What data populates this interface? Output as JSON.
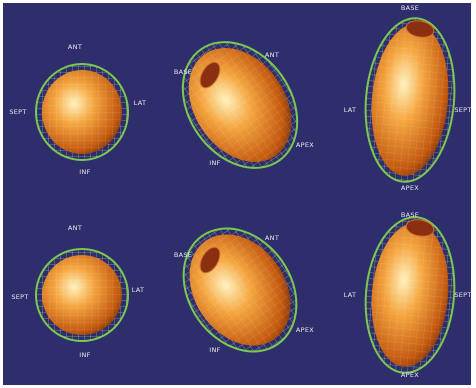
{
  "panels": [
    {
      "labels": [
        "ANT",
        "SEPT",
        "LAT",
        "INF"
      ]
    },
    {
      "labels": [
        "BASE",
        "ANT",
        "INF",
        "APEX"
      ]
    },
    {
      "labels": [
        "BASE",
        "LAT",
        "SEPT",
        "APEX"
      ]
    },
    {
      "labels": [
        "ANT",
        "SEPT",
        "LAT",
        "INF"
      ]
    },
    {
      "labels": [
        "BASE",
        "ANT",
        "INF",
        "APEX"
      ]
    },
    {
      "labels": [
        "BASE",
        "LAT",
        "SEPT",
        "APEX"
      ]
    }
  ]
}
